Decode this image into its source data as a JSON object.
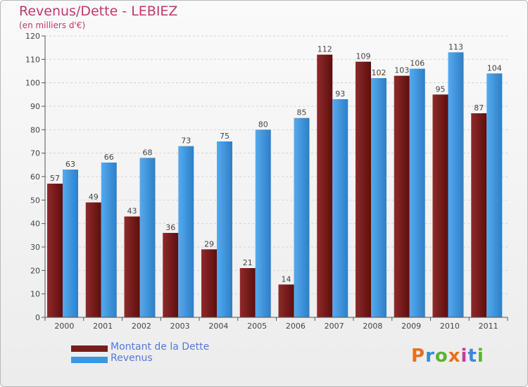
{
  "chart_data": {
    "type": "bar",
    "title": "Revenus/Dette - LEBIEZ",
    "subtitle": "(en milliers d'€)",
    "categories": [
      "2000",
      "2001",
      "2002",
      "2003",
      "2004",
      "2005",
      "2006",
      "2007",
      "2008",
      "2009",
      "2010",
      "2011"
    ],
    "series": [
      {
        "name": "Montant de la Dette",
        "color": "#7a1c1c",
        "values": [
          57,
          49,
          43,
          36,
          29,
          21,
          14,
          112,
          109,
          103,
          95,
          87
        ]
      },
      {
        "name": "Revenus",
        "color": "#3d96de",
        "values": [
          63,
          66,
          68,
          73,
          75,
          80,
          85,
          93,
          102,
          106,
          113,
          104
        ]
      }
    ],
    "ylim": [
      0,
      120
    ],
    "yticks": [
      "0",
      "10",
      "20",
      "30",
      "40",
      "50",
      "60",
      "70",
      "80",
      "90",
      "100",
      "110",
      "120"
    ],
    "grid": true,
    "legend_position": "bottom-left"
  },
  "logo": {
    "text": "Proxiti",
    "colors": [
      "#e8701c",
      "#3a88d8",
      "#5bb233",
      "#e8701c",
      "#c83a9c",
      "#3a88d8",
      "#5bb233"
    ]
  }
}
